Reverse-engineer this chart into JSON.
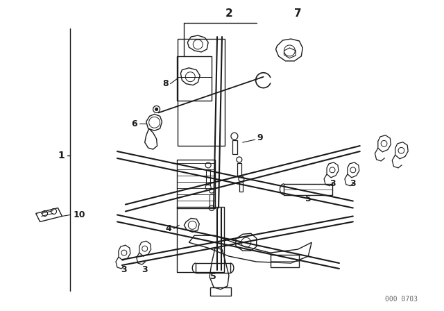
{
  "bg_color": "#ffffff",
  "line_color": "#1a1a1a",
  "fig_width": 6.4,
  "fig_height": 4.48,
  "dpi": 100,
  "watermark": "000 0703"
}
